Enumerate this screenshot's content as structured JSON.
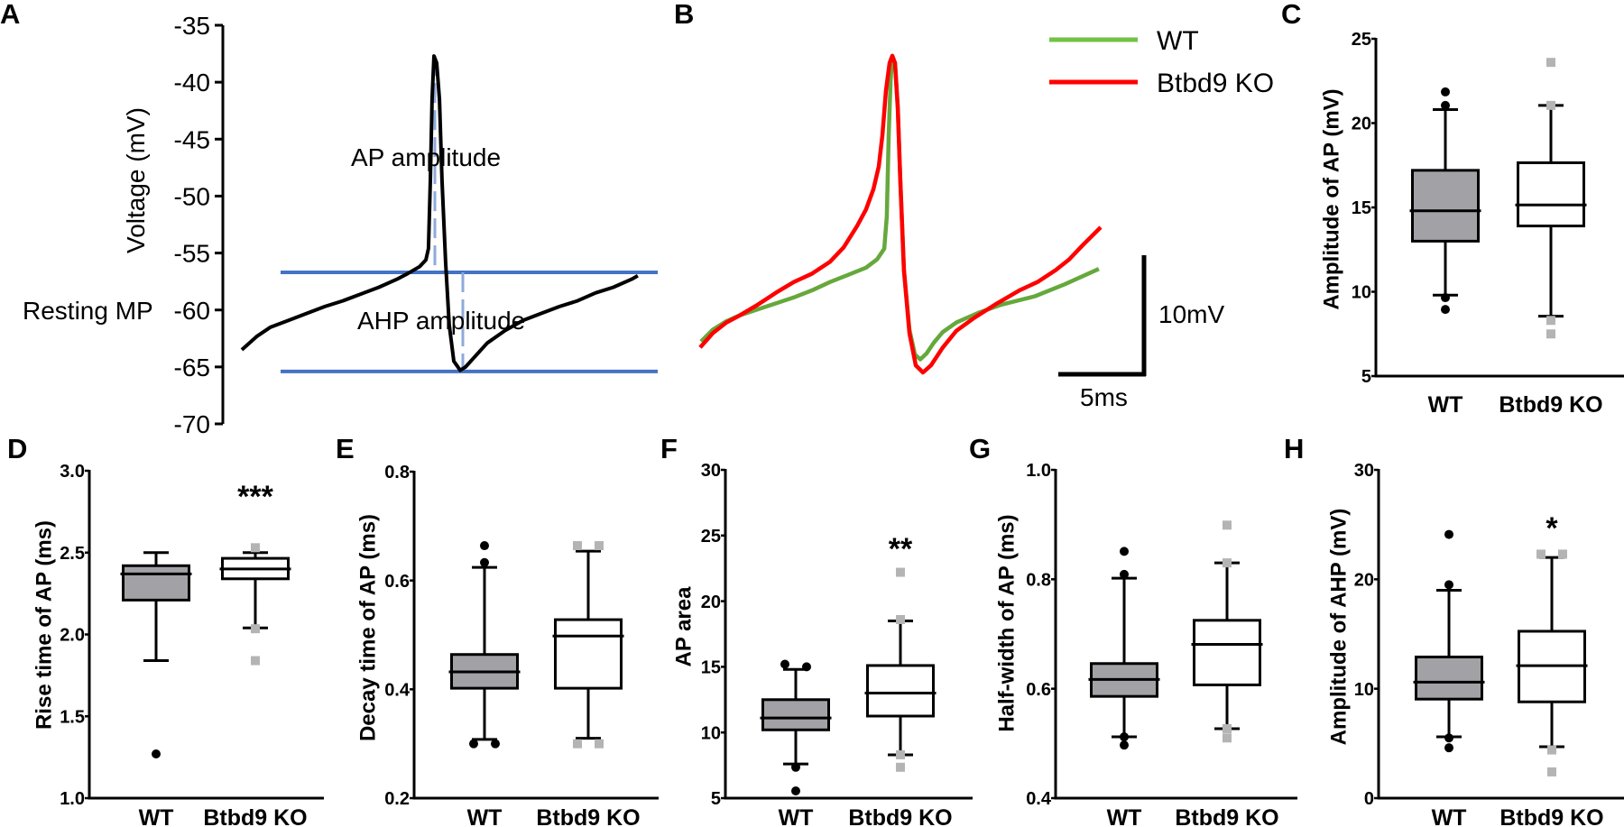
{
  "colors": {
    "wt_box_fill": "#a2a1a6",
    "ko_box_fill": "#ffffff",
    "wt_outlier": "#000000",
    "ko_outlier": "#b4b4b4",
    "wt_trace": "#66a83c",
    "wt_legend": "#72c244",
    "ko_trace": "#ff0000",
    "reference_line": "#4472c4",
    "amplitude_marker": "#8eaadb",
    "trace_a": "#000000"
  },
  "chart_data": [
    {
      "panel": "A",
      "type": "line",
      "ylabel": "Voltage (mV)",
      "ylim": [
        -70,
        -35
      ],
      "yticks": [
        "-35",
        "-40",
        "-45",
        "-50",
        "-55",
        "-60",
        "-65",
        "-70"
      ],
      "annotations": {
        "resting": "Resting MP",
        "ap": "AP amplitude",
        "ahp": "AHP amplitude"
      },
      "reference_lines_mV": [
        -56.7,
        -65.4
      ],
      "series": [
        {
          "time_ms": [
            0,
            0.89,
            1.68,
            2.74,
            3.79,
            4.84,
            5.89,
            6.95,
            8.0,
            9.05,
            9.68,
            10.37,
            10.74,
            10.89,
            11.0,
            11.1,
            11.21,
            11.37,
            11.53,
            11.68,
            11.89,
            12.1,
            12.37,
            12.74,
            13.05,
            13.53,
            14.32,
            15.37,
            16.42,
            17.47,
            18.53,
            19.58,
            20.63,
            21.68,
            22.74,
            23.1
          ],
          "voltage_mV": [
            -63.5,
            -62.3,
            -61.5,
            -60.9,
            -60.3,
            -59.7,
            -59.2,
            -58.6,
            -58.0,
            -57.3,
            -56.8,
            -56.2,
            -55.6,
            -54.6,
            -48.6,
            -41.5,
            -37.7,
            -38.3,
            -41.5,
            -48.6,
            -55.8,
            -61.3,
            -64.5,
            -65.3,
            -65.0,
            -64.2,
            -62.9,
            -61.8,
            -60.9,
            -60.3,
            -59.7,
            -59.2,
            -58.5,
            -58.0,
            -57.3,
            -57.0
          ]
        }
      ]
    },
    {
      "panel": "B",
      "type": "line",
      "legend": [
        "WT",
        "Btbd9 KO"
      ],
      "scale_bar": {
        "voltage": "10mV",
        "time": "5ms",
        "voltage_mV": 10,
        "time_ms": 5
      },
      "series": [
        {
          "name": "WT",
          "time_ms": [
            0.05,
            0.74,
            1.53,
            2.32,
            3.37,
            4.42,
            5.47,
            6.53,
            7.58,
            8.63,
            9.68,
            10.32,
            10.74,
            10.89,
            11.0,
            11.11,
            11.21,
            11.37,
            11.53,
            11.68,
            11.89,
            12.21,
            12.53,
            12.84,
            13.21,
            13.63,
            14.16,
            14.95,
            16.21,
            17.58,
            19.53,
            21.26,
            23.26
          ],
          "voltage_rel_mV": [
            2.6,
            3.6,
            4.3,
            4.8,
            5.3,
            5.8,
            6.3,
            6.9,
            7.6,
            8.2,
            8.8,
            9.5,
            10.4,
            13.1,
            19.9,
            24.5,
            26.6,
            26.0,
            22.2,
            16.1,
            8.6,
            3.6,
            1.5,
            1.1,
            1.6,
            2.5,
            3.4,
            4.2,
            5.0,
            5.7,
            6.4,
            7.4,
            8.7
          ]
        },
        {
          "name": "Btbd9 KO",
          "time_ms": [
            0,
            0.74,
            1.53,
            2.32,
            3.37,
            4.42,
            5.47,
            6.53,
            7.58,
            8.37,
            9.16,
            9.68,
            10.11,
            10.42,
            10.63,
            10.84,
            11.05,
            11.21,
            11.37,
            11.53,
            11.68,
            11.89,
            12.21,
            12.58,
            13.0,
            13.47,
            14.16,
            14.95,
            16.0,
            17.32,
            18.63,
            19.68,
            20.74,
            21.53,
            22.32,
            23.37
          ],
          "voltage_rel_mV": [
            2.1,
            3.3,
            4.2,
            4.8,
            5.7,
            6.7,
            7.6,
            8.3,
            9.3,
            10.5,
            12.3,
            13.7,
            15.4,
            17.3,
            19.9,
            23.7,
            26.0,
            26.6,
            26.0,
            22.2,
            16.1,
            8.6,
            3.3,
            0.6,
            0,
            0.6,
            2.1,
            3.5,
            4.6,
            5.8,
            6.9,
            7.6,
            8.6,
            9.5,
            10.7,
            12.2
          ]
        }
      ]
    },
    {
      "panel": "C",
      "type": "box",
      "ylabel": "Amplitude of AP (mV)",
      "ylim": [
        5,
        25
      ],
      "yticks": [
        "5",
        "10",
        "15",
        "20",
        "25"
      ],
      "categories": [
        "WT",
        "Btbd9 KO"
      ],
      "significance": "",
      "groups": [
        {
          "q1": 13.0,
          "median": 14.8,
          "q3": 17.2,
          "whisker_low": 9.8,
          "whisker_high": 20.8,
          "outliers": [
            21.85,
            21.05,
            9.65,
            8.95
          ]
        },
        {
          "q1": 13.9,
          "median": 15.15,
          "q3": 17.65,
          "whisker_low": 8.55,
          "whisker_high": 21.05,
          "outliers": [
            23.6,
            21.05,
            8.3,
            7.5
          ]
        }
      ]
    },
    {
      "panel": "D",
      "type": "box",
      "ylabel": "Rise time of AP (ms)",
      "ylim": [
        1.0,
        3.0
      ],
      "yticks": [
        "1.0",
        "1.5",
        "2.0",
        "2.5",
        "3.0"
      ],
      "categories": [
        "WT",
        "Btbd9 KO"
      ],
      "significance": "***",
      "groups": [
        {
          "q1": 2.21,
          "median": 2.37,
          "q3": 2.42,
          "whisker_low": 1.84,
          "whisker_high": 2.5,
          "outliers": [
            1.27
          ]
        },
        {
          "q1": 2.34,
          "median": 2.4,
          "q3": 2.465,
          "whisker_low": 2.04,
          "whisker_high": 2.5,
          "outliers": [
            2.53,
            2.035,
            1.84
          ]
        }
      ]
    },
    {
      "panel": "E",
      "type": "box",
      "ylabel": "Decay time of AP (ms)",
      "ylim": [
        0.2,
        0.8
      ],
      "yticks": [
        "0.2",
        "0.4",
        "0.6",
        "0.8"
      ],
      "categories": [
        "WT",
        "Btbd9 KO"
      ],
      "significance": "",
      "groups": [
        {
          "q1": 0.402,
          "median": 0.432,
          "q3": 0.464,
          "whisker_low": 0.308,
          "whisker_high": 0.624,
          "outliers": [
            0.664,
            0.633,
            0.3,
            0.3
          ]
        },
        {
          "q1": 0.402,
          "median": 0.498,
          "q3": 0.528,
          "whisker_low": 0.31,
          "whisker_high": 0.654,
          "outliers": [
            0.664,
            0.664,
            0.3,
            0.3
          ]
        }
      ]
    },
    {
      "panel": "F",
      "type": "box",
      "ylabel": "AP area",
      "ylim": [
        5,
        30
      ],
      "yticks": [
        "5",
        "10",
        "15",
        "20",
        "25",
        "30"
      ],
      "categories": [
        "WT",
        "Btbd9 KO"
      ],
      "significance": "**",
      "groups": [
        {
          "q1": 10.2,
          "median": 11.1,
          "q3": 12.5,
          "whisker_low": 7.6,
          "whisker_high": 14.8,
          "outliers": [
            15.2,
            15.0,
            7.35,
            5.55
          ]
        },
        {
          "q1": 11.25,
          "median": 13.0,
          "q3": 15.1,
          "whisker_low": 8.3,
          "whisker_high": 18.5,
          "outliers": [
            22.2,
            18.6,
            8.3,
            7.35
          ]
        }
      ]
    },
    {
      "panel": "G",
      "type": "box",
      "ylabel": "Half-width of AP (ms)",
      "ylim": [
        0.4,
        1.0
      ],
      "yticks": [
        "0.4",
        "0.6",
        "0.8",
        "1.0"
      ],
      "categories": [
        "WT",
        "Btbd9 KO"
      ],
      "significance": "",
      "groups": [
        {
          "q1": 0.586,
          "median": 0.617,
          "q3": 0.646,
          "whisker_low": 0.512,
          "whisker_high": 0.802,
          "outliers": [
            0.851,
            0.809,
            0.512,
            0.497
          ]
        },
        {
          "q1": 0.607,
          "median": 0.681,
          "q3": 0.725,
          "whisker_low": 0.527,
          "whisker_high": 0.83,
          "outliers": [
            0.899,
            0.83,
            0.527,
            0.51
          ]
        }
      ]
    },
    {
      "panel": "H",
      "type": "box",
      "ylabel": "Amplitude of AHP (mV)",
      "ylim": [
        0,
        30
      ],
      "yticks": [
        "0",
        "10",
        "20",
        "30"
      ],
      "categories": [
        "WT",
        "Btbd9 KO"
      ],
      "significance": "*",
      "groups": [
        {
          "q1": 9.05,
          "median": 10.6,
          "q3": 12.9,
          "whisker_low": 5.6,
          "whisker_high": 19.0,
          "outliers": [
            24.1,
            19.5,
            5.5,
            4.6
          ]
        },
        {
          "q1": 8.8,
          "median": 12.1,
          "q3": 15.25,
          "whisker_low": 4.7,
          "whisker_high": 22.0,
          "outliers": [
            22.3,
            22.3,
            4.4,
            2.4
          ]
        }
      ]
    }
  ]
}
